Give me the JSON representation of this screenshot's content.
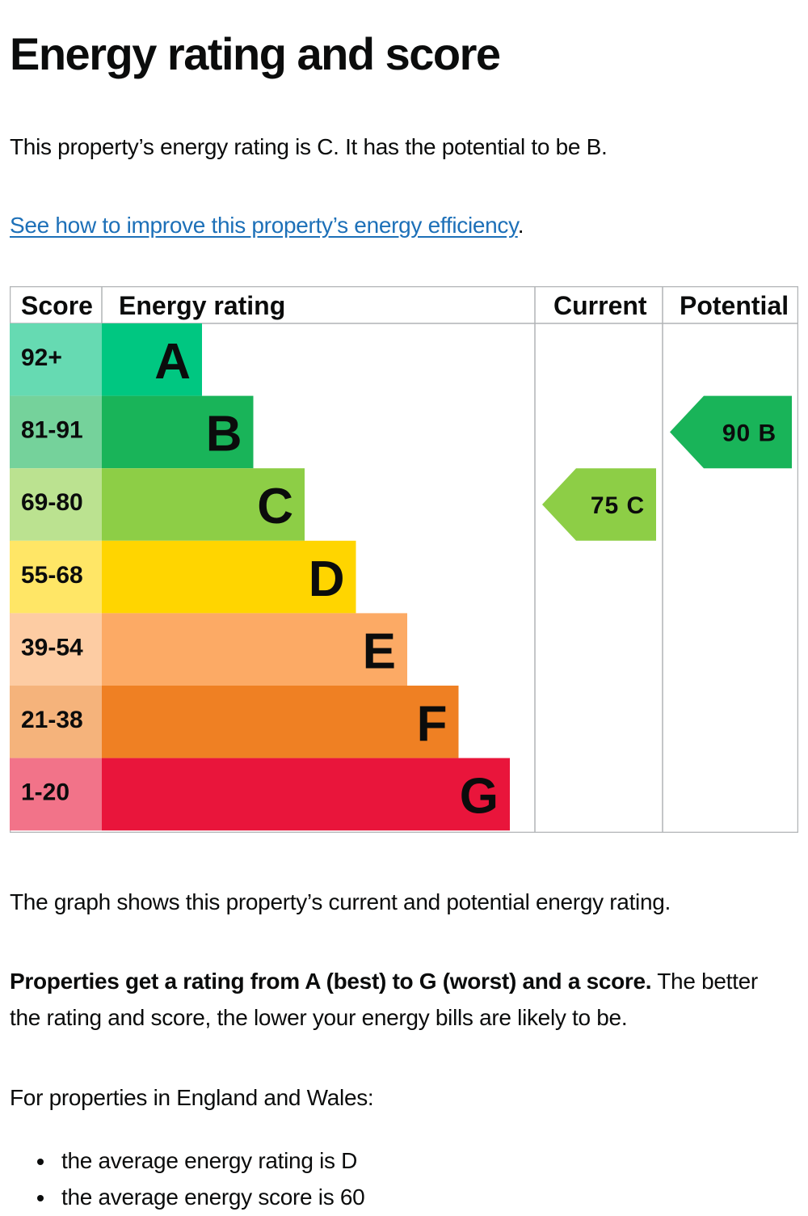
{
  "page": {
    "title": "Energy rating and score",
    "intro": "This property’s energy rating is C. It has the potential to be B.",
    "improve_link": "See how to improve this property’s energy efficiency",
    "improve_link_suffix": ".",
    "graph_note": "The graph shows this property’s current and potential energy rating.",
    "ratings_bold": "Properties get a rating from A (best) to G (worst) and a score.",
    "ratings_rest": " The better the rating and score, the lower your energy bills are likely to be.",
    "regional_intro": "For properties in England and Wales:",
    "bullets": [
      "the average energy rating is D",
      "the average energy score is 60"
    ]
  },
  "chart_data": {
    "type": "table",
    "columns": [
      "Score",
      "Energy rating",
      "Current",
      "Potential"
    ],
    "bands": [
      {
        "score": "92+",
        "letter": "A",
        "color": "#00c781",
        "score_bg": "#66dab2"
      },
      {
        "score": "81-91",
        "letter": "B",
        "color": "#19b459",
        "score_bg": "#75d29b"
      },
      {
        "score": "69-80",
        "letter": "C",
        "color": "#8dce46",
        "score_bg": "#bbe290"
      },
      {
        "score": "55-68",
        "letter": "D",
        "color": "#ffd500",
        "score_bg": "#ffe666"
      },
      {
        "score": "39-54",
        "letter": "E",
        "color": "#fcaa65",
        "score_bg": "#fdcca3"
      },
      {
        "score": "21-38",
        "letter": "F",
        "color": "#ef8023",
        "score_bg": "#f5b37b"
      },
      {
        "score": "1-20",
        "letter": "G",
        "color": "#e9153b",
        "score_bg": "#f27389"
      }
    ],
    "current": {
      "score": 75,
      "letter": "C",
      "label": "75 C"
    },
    "potential": {
      "score": 90,
      "letter": "B",
      "label": "90 B"
    }
  }
}
